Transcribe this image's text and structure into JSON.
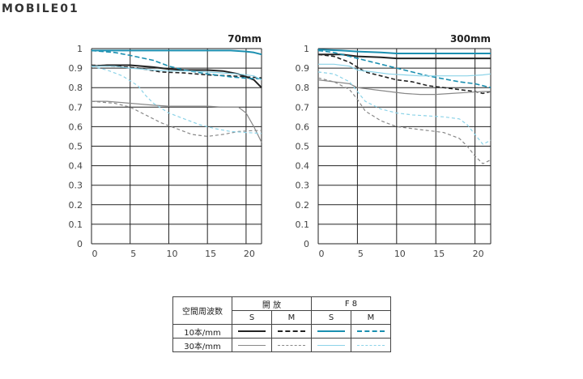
{
  "logo": {
    "text": "MOBILE01"
  },
  "charts": [
    {
      "title": "70mm",
      "xlim": [
        0,
        22
      ],
      "ylim": [
        0,
        1
      ],
      "xticks": [
        "0",
        "5",
        "10",
        "15",
        "20"
      ],
      "yticks": [
        "0",
        "0.1",
        "0.2",
        "0.3",
        "0.4",
        "0.5",
        "0.6",
        "0.7",
        "0.8",
        "0.9",
        "1"
      ]
    },
    {
      "title": "300mm",
      "xlim": [
        0,
        22
      ],
      "ylim": [
        0,
        1
      ],
      "xticks": [
        "0",
        "5",
        "10",
        "15",
        "20"
      ],
      "yticks": [
        "0",
        "0.1",
        "0.2",
        "0.3",
        "0.4",
        "0.5",
        "0.6",
        "0.7",
        "0.8",
        "0.9",
        "1"
      ]
    }
  ],
  "chart_data": [
    {
      "type": "line",
      "title": "70mm",
      "xlim": [
        0,
        22
      ],
      "ylim": [
        0,
        1
      ],
      "grid": true,
      "series": [
        {
          "key": "open_10_s",
          "color": "#222222",
          "dash": "",
          "width": 2.0,
          "x": [
            0,
            2,
            5,
            8,
            10,
            12,
            15,
            17,
            19,
            21,
            22
          ],
          "y": [
            0.91,
            0.915,
            0.915,
            0.905,
            0.895,
            0.89,
            0.89,
            0.885,
            0.87,
            0.84,
            0.8
          ]
        },
        {
          "key": "open_10_m",
          "color": "#222222",
          "dash": "5,3",
          "width": 1.6,
          "x": [
            0,
            3,
            6,
            9,
            12,
            15,
            18,
            20,
            22
          ],
          "y": [
            0.915,
            0.91,
            0.9,
            0.88,
            0.875,
            0.865,
            0.86,
            0.855,
            0.85
          ]
        },
        {
          "key": "f8_10_s",
          "color": "#1a8fb0",
          "dash": "",
          "width": 2.0,
          "x": [
            0,
            5,
            10,
            15,
            18,
            20,
            21,
            22
          ],
          "y": [
            0.99,
            0.99,
            0.99,
            0.99,
            0.99,
            0.985,
            0.98,
            0.97
          ]
        },
        {
          "key": "f8_10_m",
          "color": "#1a8fb0",
          "dash": "6,3",
          "width": 1.6,
          "x": [
            0,
            3,
            5,
            8,
            10,
            12,
            15,
            18,
            20,
            22
          ],
          "y": [
            0.99,
            0.98,
            0.965,
            0.94,
            0.91,
            0.89,
            0.87,
            0.855,
            0.848,
            0.845
          ]
        },
        {
          "key": "open_30_s",
          "color": "#888888",
          "dash": "",
          "width": 1.2,
          "x": [
            0,
            2,
            5,
            8,
            10,
            13,
            15,
            17,
            19,
            20,
            21,
            22
          ],
          "y": [
            0.73,
            0.73,
            0.72,
            0.71,
            0.705,
            0.705,
            0.705,
            0.7,
            0.7,
            0.67,
            0.6,
            0.52
          ]
        },
        {
          "key": "open_30_m",
          "color": "#888888",
          "dash": "4,3",
          "width": 1.2,
          "x": [
            0,
            3,
            5,
            7,
            9,
            11,
            13,
            15,
            17,
            19,
            21,
            22
          ],
          "y": [
            0.73,
            0.72,
            0.7,
            0.66,
            0.62,
            0.59,
            0.56,
            0.55,
            0.56,
            0.575,
            0.58,
            0.58
          ]
        },
        {
          "key": "f8_30_s",
          "color": "#8cd3e8",
          "dash": "",
          "width": 1.2,
          "x": [
            0,
            3,
            5,
            8,
            10,
            13,
            15,
            17,
            19,
            21,
            22
          ],
          "y": [
            0.91,
            0.91,
            0.9,
            0.89,
            0.885,
            0.885,
            0.88,
            0.875,
            0.87,
            0.86,
            0.84
          ]
        },
        {
          "key": "f8_30_m",
          "color": "#8cd3e8",
          "dash": "4,3",
          "width": 1.2,
          "x": [
            0,
            2,
            4,
            6,
            7,
            8,
            10,
            12,
            14,
            16,
            18,
            20,
            22
          ],
          "y": [
            0.91,
            0.89,
            0.86,
            0.81,
            0.76,
            0.72,
            0.67,
            0.64,
            0.61,
            0.59,
            0.575,
            0.57,
            0.565
          ]
        }
      ]
    },
    {
      "type": "line",
      "title": "300mm",
      "xlim": [
        0,
        22
      ],
      "ylim": [
        0,
        1
      ],
      "grid": true,
      "series": [
        {
          "key": "open_10_s",
          "color": "#222222",
          "dash": "",
          "width": 2.0,
          "x": [
            0,
            3,
            5,
            8,
            10,
            13,
            15,
            18,
            20,
            22
          ],
          "y": [
            0.97,
            0.97,
            0.96,
            0.955,
            0.95,
            0.95,
            0.95,
            0.95,
            0.95,
            0.95
          ]
        },
        {
          "key": "open_10_m",
          "color": "#222222",
          "dash": "5,3",
          "width": 1.6,
          "x": [
            0,
            2,
            4,
            6,
            8,
            10,
            12,
            14,
            16,
            18,
            20,
            21,
            22
          ],
          "y": [
            0.97,
            0.96,
            0.93,
            0.88,
            0.86,
            0.84,
            0.83,
            0.81,
            0.8,
            0.79,
            0.78,
            0.77,
            0.78
          ]
        },
        {
          "key": "f8_10_s",
          "color": "#1a8fb0",
          "dash": "",
          "width": 2.0,
          "x": [
            0,
            3,
            5,
            8,
            10,
            13,
            15,
            18,
            20,
            22
          ],
          "y": [
            0.995,
            0.99,
            0.985,
            0.98,
            0.975,
            0.975,
            0.975,
            0.975,
            0.975,
            0.975
          ]
        },
        {
          "key": "f8_10_m",
          "color": "#1a8fb0",
          "dash": "6,3",
          "width": 1.6,
          "x": [
            0,
            2,
            4,
            6,
            8,
            10,
            12,
            14,
            16,
            18,
            20,
            21,
            22
          ],
          "y": [
            0.99,
            0.98,
            0.96,
            0.94,
            0.92,
            0.9,
            0.88,
            0.86,
            0.845,
            0.83,
            0.82,
            0.81,
            0.8
          ]
        },
        {
          "key": "open_30_s",
          "color": "#888888",
          "dash": "",
          "width": 1.2,
          "x": [
            0,
            2,
            4,
            5,
            7,
            9,
            11,
            13,
            15,
            17,
            19,
            21,
            22
          ],
          "y": [
            0.84,
            0.83,
            0.82,
            0.8,
            0.79,
            0.78,
            0.77,
            0.765,
            0.765,
            0.77,
            0.775,
            0.78,
            0.78
          ]
        },
        {
          "key": "open_30_m",
          "color": "#888888",
          "dash": "4,3",
          "width": 1.2,
          "x": [
            0,
            2,
            4,
            5,
            6,
            8,
            10,
            12,
            14,
            16,
            18,
            19,
            20,
            21,
            22
          ],
          "y": [
            0.85,
            0.83,
            0.79,
            0.74,
            0.68,
            0.63,
            0.6,
            0.59,
            0.58,
            0.57,
            0.54,
            0.5,
            0.45,
            0.41,
            0.43
          ]
        },
        {
          "key": "f8_30_s",
          "color": "#8cd3e8",
          "dash": "",
          "width": 1.2,
          "x": [
            0,
            2,
            4,
            5,
            7,
            9,
            11,
            13,
            15,
            17,
            19,
            21,
            22
          ],
          "y": [
            0.92,
            0.92,
            0.91,
            0.89,
            0.88,
            0.87,
            0.865,
            0.86,
            0.86,
            0.86,
            0.86,
            0.865,
            0.87
          ]
        },
        {
          "key": "f8_30_m",
          "color": "#8cd3e8",
          "dash": "4,3",
          "width": 1.2,
          "x": [
            0,
            2,
            4,
            5,
            6,
            8,
            10,
            12,
            14,
            16,
            18,
            19,
            20,
            21,
            22
          ],
          "y": [
            0.88,
            0.87,
            0.83,
            0.78,
            0.73,
            0.69,
            0.67,
            0.66,
            0.655,
            0.65,
            0.64,
            0.61,
            0.56,
            0.51,
            0.53
          ]
        }
      ]
    }
  ],
  "legend": {
    "row_header": "空間周波数",
    "group_open": "開 放",
    "group_f8": "F 8",
    "col_s": "S",
    "col_m": "M",
    "rows": [
      {
        "label": "10本/mm",
        "open_s": "open_10_s",
        "open_m": "open_10_m",
        "f8_s": "f8_10_s",
        "f8_m": "f8_10_m"
      },
      {
        "label": "30本/mm",
        "open_s": "open_30_s",
        "open_m": "open_30_m",
        "f8_s": "f8_30_s",
        "f8_m": "f8_30_m"
      }
    ]
  }
}
